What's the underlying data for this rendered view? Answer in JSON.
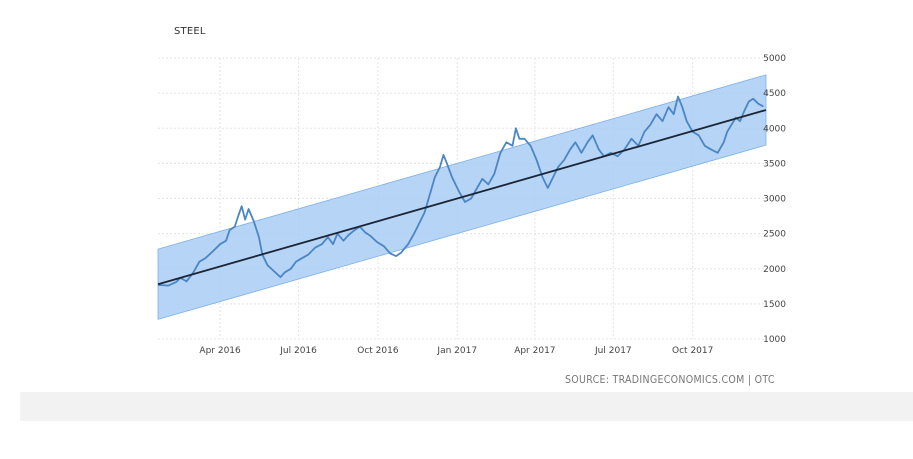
{
  "chart_data": {
    "type": "line",
    "title": "STEEL",
    "source": "SOURCE: TRADINGECONOMICS.COM | OTC",
    "x_ticks": [
      "Apr 2016",
      "Jul 2016",
      "Oct 2016",
      "Jan 2017",
      "Apr 2017",
      "Jul 2017",
      "Oct 2017"
    ],
    "y_ticks": [
      1000,
      1500,
      2000,
      2500,
      3000,
      3500,
      4000,
      4500,
      5000
    ],
    "ylim": [
      1000,
      5000
    ],
    "xlim": [
      "2016-01-20",
      "2017-12-25"
    ],
    "grid": {
      "vertical": true,
      "horizontal": true
    },
    "colors": {
      "line": "#4a86c5",
      "trend": "#1a2535",
      "band": "#a9ccf3",
      "band_edge": "#7db0e8"
    },
    "series": [
      {
        "values": [
          [
            "2016-01-20",
            1770
          ],
          [
            "2016-02-01",
            1760
          ],
          [
            "2016-02-10",
            1810
          ],
          [
            "2016-02-15",
            1870
          ],
          [
            "2016-02-22",
            1820
          ],
          [
            "2016-03-01",
            1950
          ],
          [
            "2016-03-08",
            2100
          ],
          [
            "2016-03-15",
            2150
          ],
          [
            "2016-03-22",
            2230
          ],
          [
            "2016-04-01",
            2350
          ],
          [
            "2016-04-08",
            2400
          ],
          [
            "2016-04-12",
            2550
          ],
          [
            "2016-04-18",
            2600
          ],
          [
            "2016-04-22",
            2750
          ],
          [
            "2016-04-26",
            2890
          ],
          [
            "2016-04-30",
            2700
          ],
          [
            "2016-05-04",
            2850
          ],
          [
            "2016-05-10",
            2680
          ],
          [
            "2016-05-16",
            2450
          ],
          [
            "2016-05-20",
            2200
          ],
          [
            "2016-05-26",
            2050
          ],
          [
            "2016-06-02",
            1970
          ],
          [
            "2016-06-10",
            1880
          ],
          [
            "2016-06-15",
            1950
          ],
          [
            "2016-06-22",
            2000
          ],
          [
            "2016-06-28",
            2100
          ],
          [
            "2016-07-05",
            2150
          ],
          [
            "2016-07-12",
            2200
          ],
          [
            "2016-07-20",
            2300
          ],
          [
            "2016-07-28",
            2350
          ],
          [
            "2016-08-04",
            2450
          ],
          [
            "2016-08-10",
            2350
          ],
          [
            "2016-08-15",
            2500
          ],
          [
            "2016-08-22",
            2400
          ],
          [
            "2016-08-28",
            2480
          ],
          [
            "2016-09-04",
            2550
          ],
          [
            "2016-09-10",
            2600
          ],
          [
            "2016-09-16",
            2520
          ],
          [
            "2016-09-22",
            2470
          ],
          [
            "2016-09-30",
            2380
          ],
          [
            "2016-10-08",
            2320
          ],
          [
            "2016-10-15",
            2220
          ],
          [
            "2016-10-22",
            2180
          ],
          [
            "2016-10-28",
            2230
          ],
          [
            "2016-11-05",
            2350
          ],
          [
            "2016-11-12",
            2500
          ],
          [
            "2016-11-18",
            2650
          ],
          [
            "2016-11-24",
            2800
          ],
          [
            "2016-11-30",
            3050
          ],
          [
            "2016-12-06",
            3300
          ],
          [
            "2016-12-12",
            3450
          ],
          [
            "2016-12-16",
            3620
          ],
          [
            "2016-12-20",
            3500
          ],
          [
            "2016-12-26",
            3300
          ],
          [
            "2017-01-03",
            3100
          ],
          [
            "2017-01-10",
            2950
          ],
          [
            "2017-01-17",
            3000
          ],
          [
            "2017-01-24",
            3150
          ],
          [
            "2017-01-30",
            3280
          ],
          [
            "2017-02-06",
            3200
          ],
          [
            "2017-02-13",
            3350
          ],
          [
            "2017-02-20",
            3650
          ],
          [
            "2017-02-27",
            3800
          ],
          [
            "2017-03-06",
            3750
          ],
          [
            "2017-03-10",
            4000
          ],
          [
            "2017-03-14",
            3850
          ],
          [
            "2017-03-20",
            3850
          ],
          [
            "2017-03-27",
            3750
          ],
          [
            "2017-04-03",
            3550
          ],
          [
            "2017-04-10",
            3300
          ],
          [
            "2017-04-16",
            3150
          ],
          [
            "2017-04-22",
            3300
          ],
          [
            "2017-04-28",
            3450
          ],
          [
            "2017-05-05",
            3550
          ],
          [
            "2017-05-12",
            3700
          ],
          [
            "2017-05-18",
            3800
          ],
          [
            "2017-05-25",
            3650
          ],
          [
            "2017-06-01",
            3800
          ],
          [
            "2017-06-07",
            3900
          ],
          [
            "2017-06-14",
            3700
          ],
          [
            "2017-06-20",
            3600
          ],
          [
            "2017-06-28",
            3650
          ],
          [
            "2017-07-06",
            3600
          ],
          [
            "2017-07-14",
            3700
          ],
          [
            "2017-07-22",
            3850
          ],
          [
            "2017-07-30",
            3750
          ],
          [
            "2017-08-06",
            3950
          ],
          [
            "2017-08-13",
            4050
          ],
          [
            "2017-08-20",
            4200
          ],
          [
            "2017-08-27",
            4100
          ],
          [
            "2017-09-03",
            4300
          ],
          [
            "2017-09-09",
            4200
          ],
          [
            "2017-09-14",
            4450
          ],
          [
            "2017-09-19",
            4300
          ],
          [
            "2017-09-24",
            4100
          ],
          [
            "2017-10-01",
            3950
          ],
          [
            "2017-10-08",
            3900
          ],
          [
            "2017-10-15",
            3750
          ],
          [
            "2017-10-22",
            3700
          ],
          [
            "2017-10-30",
            3650
          ],
          [
            "2017-11-06",
            3800
          ],
          [
            "2017-11-10",
            3950
          ],
          [
            "2017-11-15",
            4050
          ],
          [
            "2017-11-20",
            4150
          ],
          [
            "2017-11-25",
            4100
          ],
          [
            "2017-11-30",
            4250
          ],
          [
            "2017-12-05",
            4380
          ],
          [
            "2017-12-10",
            4420
          ],
          [
            "2017-12-16",
            4350
          ],
          [
            "2017-12-22",
            4310
          ]
        ]
      }
    ],
    "trend": {
      "start": [
        "2016-01-20",
        1780
      ],
      "end": [
        "2017-12-25",
        4260
      ]
    },
    "band": {
      "half_width": 500
    }
  }
}
